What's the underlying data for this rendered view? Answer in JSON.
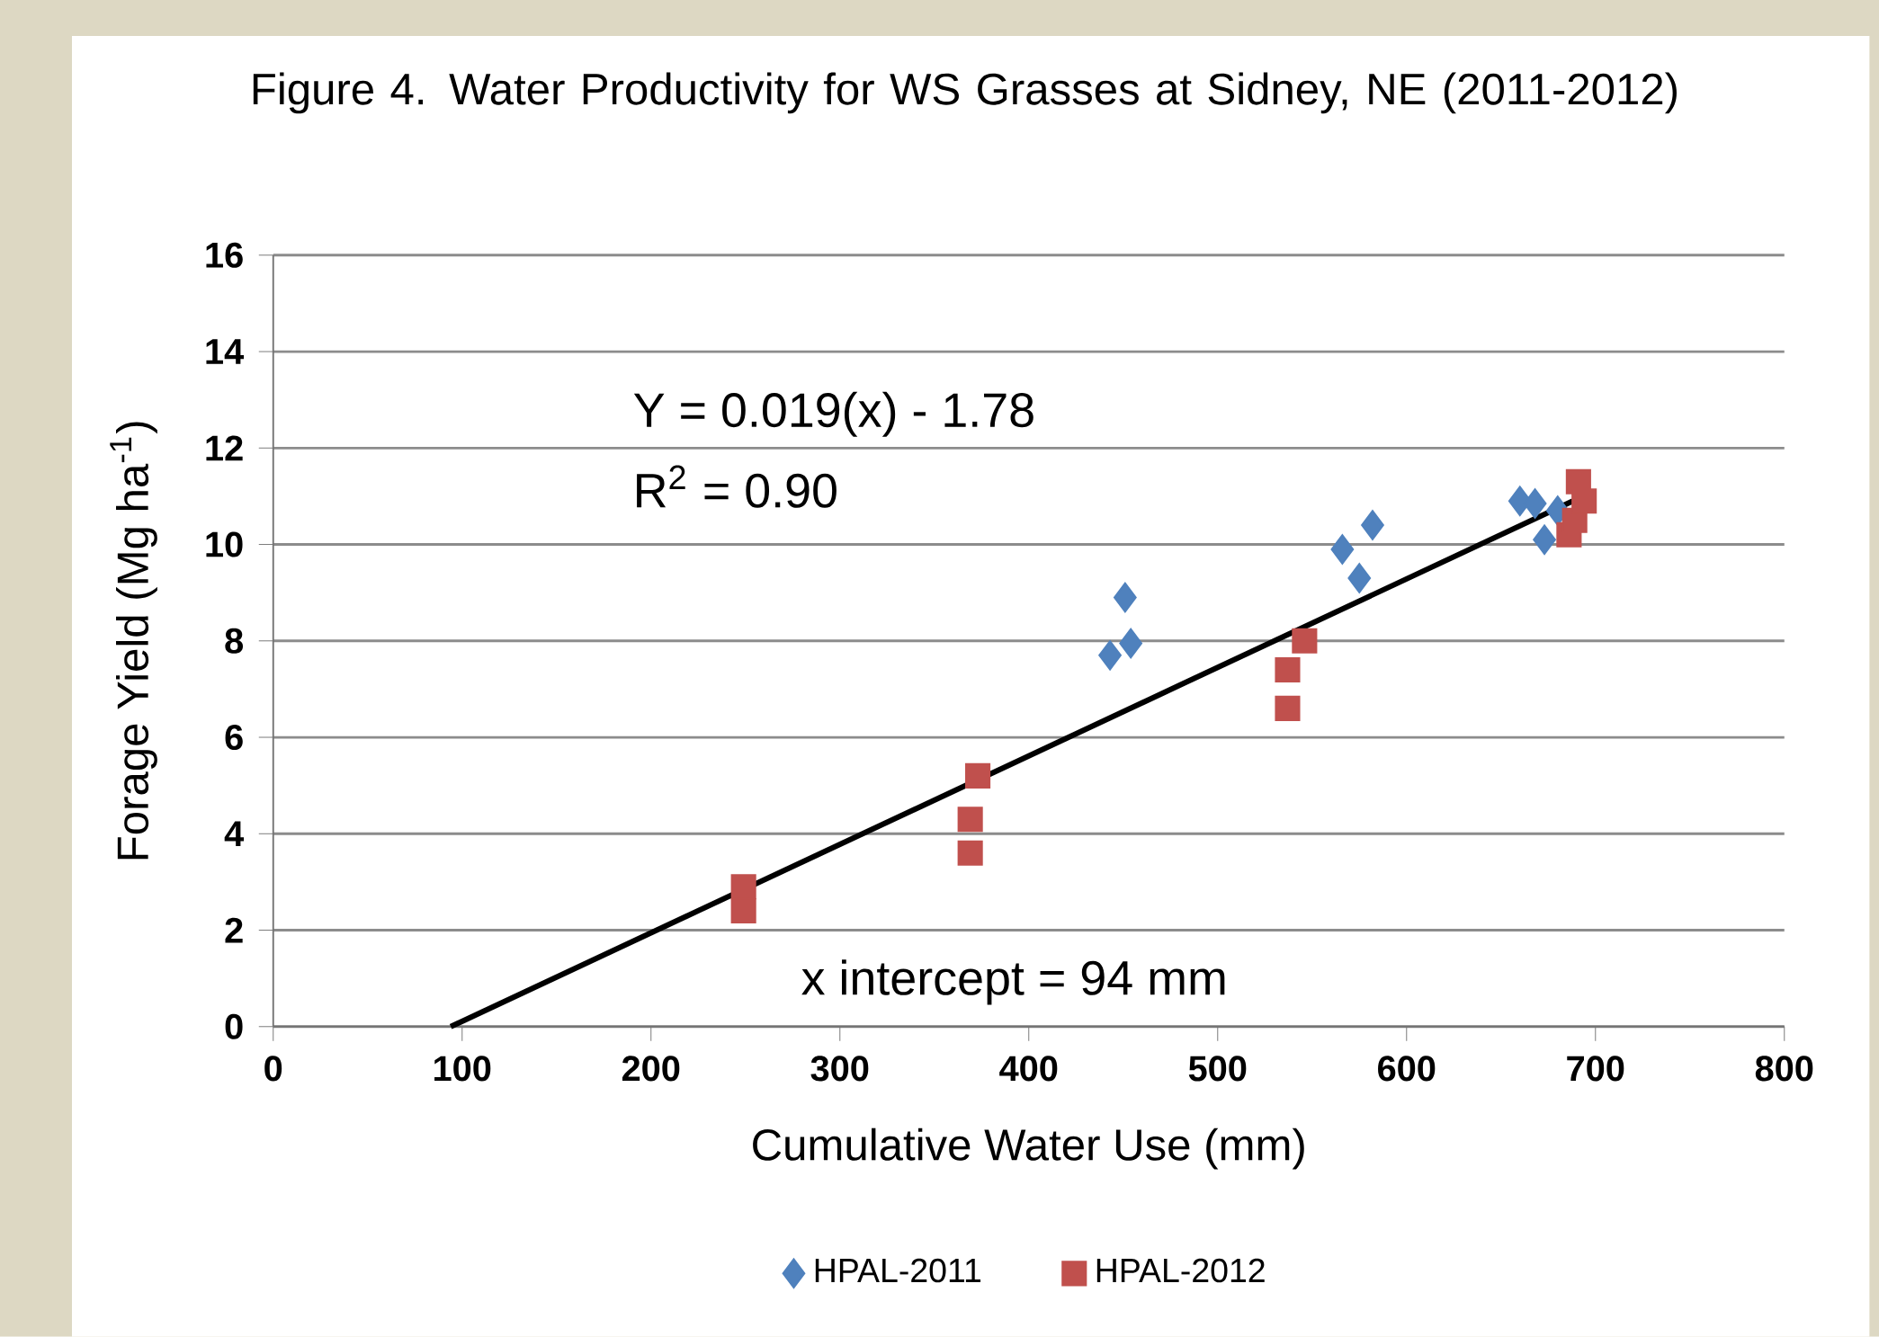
{
  "chart_data": {
    "type": "scatter",
    "title": "Figure 4.  Water Productivity for WS Grasses at Sidney, NE (2011-2012)",
    "xlabel": "Cumulative Water Use (mm)",
    "ylabel": "Forage Yield (Mg ha$^{-1}$)",
    "series": [
      {
        "name": "HPAL-2011",
        "color": "#4f81bd",
        "marker": "diamond",
        "x": [
          443,
          451,
          454,
          566,
          575,
          582,
          660,
          668,
          673,
          680
        ],
        "values": [
          7.7,
          8.9,
          7.95,
          9.9,
          9.3,
          10.4,
          10.9,
          10.85,
          10.1,
          10.7
        ]
      },
      {
        "name": "HPAL-2012",
        "color": "#c0504d",
        "marker": "square",
        "x": [
          249,
          249,
          369,
          369,
          373,
          537,
          537,
          546,
          686,
          689,
          691,
          694
        ],
        "values": [
          2.4,
          2.9,
          3.6,
          4.3,
          5.2,
          6.6,
          7.4,
          8.0,
          10.2,
          10.5,
          11.3,
          10.9
        ]
      },
      {
        "type": "line",
        "color": "#000000",
        "marker": "none",
        "x": [
          94,
          688
        ],
        "values": [
          0,
          10.9
        ]
      }
    ],
    "annotations": [
      "Y = 0.019(x) - 1.78",
      "R$^{2}$ = 0.90",
      "x intercept = 94 mm"
    ],
    "xlim": [
      0,
      800
    ],
    "xticks": [
      0,
      100,
      200,
      300,
      400,
      500,
      600,
      700,
      800
    ],
    "ylim": [
      0,
      16
    ],
    "yticks": [
      0,
      2,
      4,
      6,
      8,
      10,
      12,
      14,
      16
    ],
    "grid": "y",
    "legend": "bottom"
  }
}
